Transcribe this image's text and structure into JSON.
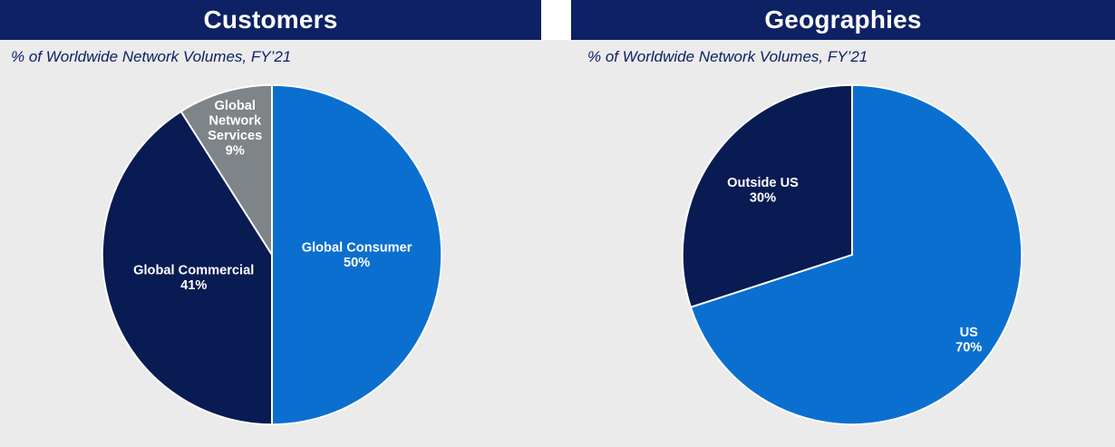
{
  "page": {
    "background": "#ebebeb",
    "header_bg": "#0d2164",
    "header_text_color": "#ffffff",
    "subtitle_color": "#0d2164",
    "slice_border_color": "#ffffff",
    "label_text_color": "#ffffff"
  },
  "chart_data": [
    {
      "type": "pie",
      "title": "Customers",
      "subtitle": "% of Worldwide Network Volumes, FY’21",
      "start_angle_deg": 0,
      "direction": "clockwise",
      "legend": "none",
      "slices": [
        {
          "label": "Global Consumer",
          "value": 50,
          "unit": "%",
          "color": "#0b6fd0",
          "label_lines": [
            "Global Consumer",
            "50%"
          ],
          "label_radius": 0.5
        },
        {
          "label": "Global Commercial",
          "value": 41,
          "unit": "%",
          "color": "#081b52",
          "label_lines": [
            "Global Commercial",
            "41%"
          ],
          "label_radius": 0.48
        },
        {
          "label": "Global Network Services",
          "value": 9,
          "unit": "%",
          "color": "#7e8487",
          "label_lines": [
            "Global",
            "Network",
            "Services",
            "9%"
          ],
          "label_radius": 0.78
        }
      ]
    },
    {
      "type": "pie",
      "title": "Geographies",
      "subtitle": "% of Worldwide Network Volumes, FY’21",
      "start_angle_deg": 0,
      "direction": "clockwise",
      "legend": "none",
      "slices": [
        {
          "label": "US",
          "value": 70,
          "unit": "%",
          "color": "#0b6fd0",
          "label_lines": [
            "US",
            "70%"
          ],
          "label_radius": 0.85
        },
        {
          "label": "Outside US",
          "value": 30,
          "unit": "%",
          "color": "#081b52",
          "label_lines": [
            "Outside US",
            "30%"
          ],
          "label_radius": 0.65
        }
      ]
    }
  ]
}
